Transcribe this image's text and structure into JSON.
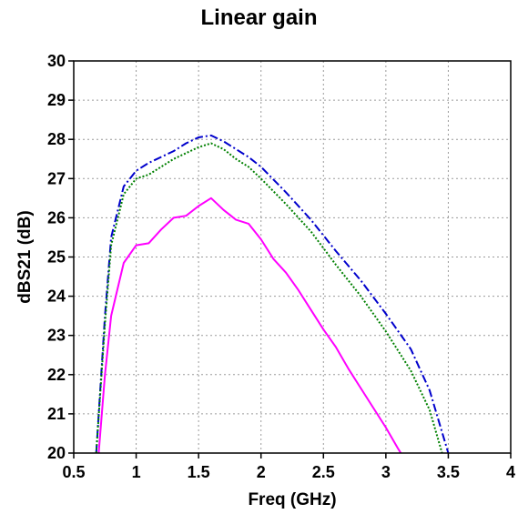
{
  "chart_data": {
    "type": "line",
    "title": "Linear gain",
    "xlabel": "Freq (GHz)",
    "ylabel": "dBS21 (dB)",
    "xlim": [
      0.5,
      4
    ],
    "ylim": [
      20,
      30
    ],
    "xticks": [
      0.5,
      1,
      1.5,
      2,
      2.5,
      3,
      3.5,
      4
    ],
    "xtick_labels": [
      "0.5",
      "1",
      "1.5",
      "2",
      "2.5",
      "3",
      "3.5",
      "4"
    ],
    "yticks": [
      20,
      21,
      22,
      23,
      24,
      25,
      26,
      27,
      28,
      29,
      30
    ],
    "ytick_labels": [
      "20",
      "21",
      "22",
      "23",
      "24",
      "25",
      "26",
      "27",
      "28",
      "29",
      "30"
    ],
    "grid": true,
    "series": [
      {
        "color": "#0000cc",
        "style": "dash-dot",
        "x": [
          0.68,
          0.75,
          0.8,
          0.9,
          1.0,
          1.1,
          1.2,
          1.3,
          1.4,
          1.5,
          1.6,
          1.7,
          1.8,
          1.9,
          2.0,
          2.2,
          2.4,
          2.6,
          2.8,
          3.0,
          3.2,
          3.35,
          3.5
        ],
        "y": [
          20.0,
          23.5,
          25.5,
          26.8,
          27.2,
          27.4,
          27.55,
          27.7,
          27.9,
          28.05,
          28.1,
          27.95,
          27.75,
          27.55,
          27.3,
          26.65,
          25.95,
          25.15,
          24.4,
          23.55,
          22.65,
          21.6,
          20.0
        ]
      },
      {
        "color": "#008000",
        "style": "dotted",
        "x": [
          0.68,
          0.75,
          0.8,
          0.9,
          1.0,
          1.1,
          1.2,
          1.3,
          1.4,
          1.5,
          1.6,
          1.7,
          1.8,
          1.9,
          2.0,
          2.2,
          2.4,
          2.6,
          2.8,
          3.0,
          3.2,
          3.35,
          3.45
        ],
        "y": [
          20.0,
          23.3,
          25.3,
          26.6,
          27.0,
          27.1,
          27.3,
          27.5,
          27.65,
          27.8,
          27.9,
          27.75,
          27.5,
          27.3,
          27.0,
          26.35,
          25.65,
          24.8,
          24.0,
          23.1,
          22.1,
          21.1,
          20.0
        ]
      },
      {
        "color": "#ff00ff",
        "style": "solid",
        "x": [
          0.7,
          0.75,
          0.8,
          0.9,
          1.0,
          1.1,
          1.2,
          1.3,
          1.4,
          1.5,
          1.6,
          1.7,
          1.8,
          1.9,
          2.0,
          2.1,
          2.2,
          2.3,
          2.4,
          2.5,
          2.6,
          2.7,
          2.8,
          2.9,
          3.0,
          3.1,
          3.12
        ],
        "y": [
          20.0,
          22.0,
          23.5,
          24.85,
          25.3,
          25.35,
          25.7,
          26.0,
          26.05,
          26.3,
          26.5,
          26.2,
          25.95,
          25.85,
          25.45,
          24.95,
          24.6,
          24.15,
          23.65,
          23.15,
          22.7,
          22.15,
          21.65,
          21.15,
          20.65,
          20.1,
          20.0
        ]
      }
    ]
  }
}
